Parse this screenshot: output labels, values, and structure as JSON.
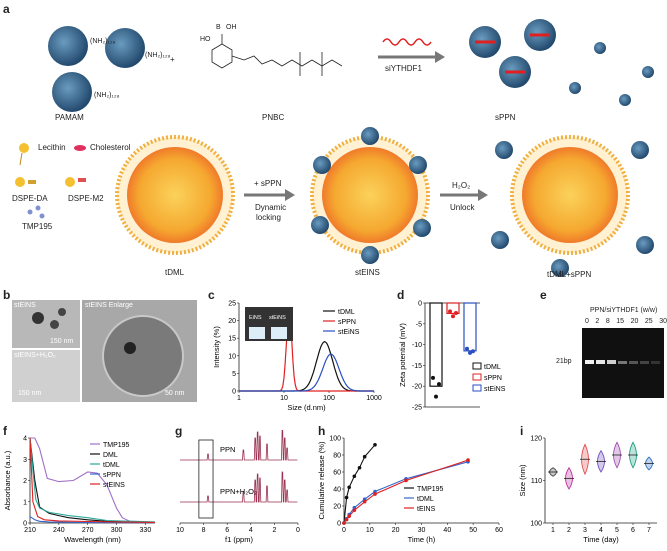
{
  "panels": {
    "a": "a",
    "b": "b",
    "c": "c",
    "d": "d",
    "e": "e",
    "f": "f",
    "g": "g",
    "h": "h",
    "i": "i"
  },
  "schematic": {
    "pamam_label": "PAMAM",
    "pamam_groups": [
      "(NH₂)₁₂₈",
      "(NH₂)₁₂₈",
      "(NH₂)₁₂₈"
    ],
    "pnbc_label": "PNBC",
    "boronic": "B",
    "oh_top": "OH",
    "oh_left": "HO",
    "sirna_label": "siYTHDF1",
    "spp_label": "sPPN",
    "plus": "+",
    "legend": {
      "lecithin": "Lecithin",
      "cholesterol": "Cholesterol",
      "dspe_da": "DSPE-DA",
      "dspe_m2": "DSPE-M2",
      "tmp195": "TMP195"
    },
    "tdml_label": "tDML",
    "arrow1_top": "+ sPPN",
    "arrow1_bottom1": "Dynamic",
    "arrow1_bottom2": "locking",
    "steins_label": "stEINS",
    "arrow2_top": "H₂O₂",
    "arrow2_bottom": "Unlock",
    "tdml_sppn_label": "tDML+sPPN"
  },
  "panel_b": {
    "tl_label": "stEINS",
    "tl_scale": "150 nm",
    "bl_label": "stEINS+H₂O₂",
    "bl_scale": "150 nm",
    "right_label": "stEINS Enlarge",
    "right_scale": "50 nm"
  },
  "panel_e": {
    "title": "PPN/siYTHDF1 (w/w)",
    "lanes": [
      "0",
      "2",
      "8",
      "15",
      "20",
      "25",
      "30"
    ],
    "band_label": "21bp"
  },
  "chart_data": [
    {
      "id": "c",
      "type": "line",
      "xlabel": "Size (d.nm)",
      "ylabel": "Intensity (%)",
      "xscale": "log",
      "xlim": [
        1,
        1000
      ],
      "xticks": [
        "1",
        "10",
        "100",
        "1000"
      ],
      "ylim": [
        0,
        25
      ],
      "yticks": [
        "0",
        "5",
        "10",
        "15",
        "20",
        "25"
      ],
      "inset": [
        "EiNS",
        "stEiNS"
      ],
      "series": [
        {
          "name": "tDML",
          "color": "#111111",
          "peak": 80,
          "height": 14,
          "width": 0.18
        },
        {
          "name": "sPPN",
          "color": "#e02020",
          "peak": 13,
          "height": 23,
          "width": 0.06
        },
        {
          "name": "stEiNS",
          "color": "#2a4fc0",
          "peak": 110,
          "height": 10.5,
          "width": 0.18
        }
      ]
    },
    {
      "id": "d",
      "type": "bar",
      "ylabel": "Zeta potential (mV)",
      "ylim": [
        -25,
        0
      ],
      "yticks": [
        "0",
        "-5",
        "-10",
        "-15",
        "-20",
        "-25"
      ],
      "categories": [
        "tDML",
        "sPPN",
        "stEiNS"
      ],
      "colors": [
        "#111111",
        "#e02020",
        "#2a4fc0"
      ],
      "values": [
        -20,
        -2.5,
        -11.5
      ],
      "points": [
        [
          -18,
          -22.5,
          -19.5
        ],
        [
          -2,
          -3.2,
          -2.4
        ],
        [
          -11,
          -12,
          -11.6
        ]
      ]
    },
    {
      "id": "f",
      "type": "line",
      "xlabel": "Wavelength (nm)",
      "ylabel": "Absorbance (a.u.)",
      "xlim": [
        210,
        340
      ],
      "xticks": [
        "210",
        "240",
        "270",
        "300",
        "330"
      ],
      "ylim": [
        0,
        4
      ],
      "yticks": [
        "0",
        "1",
        "2",
        "3",
        "4"
      ],
      "series": [
        {
          "name": "TMP195",
          "color": "#a070c8",
          "x": [
            210,
            215,
            220,
            228,
            240,
            255,
            270,
            280,
            290,
            300,
            306,
            315,
            340
          ],
          "y": [
            4,
            4,
            3.5,
            2.1,
            1.95,
            2.0,
            2.4,
            2.35,
            1.8,
            0.7,
            0.25,
            0.05,
            0.02
          ]
        },
        {
          "name": "DML",
          "color": "#111111",
          "x": [
            210,
            215,
            220,
            230,
            240,
            250,
            270,
            290,
            340
          ],
          "y": [
            4,
            2.0,
            0.75,
            0.45,
            0.35,
            0.25,
            0.15,
            0.08,
            0.03
          ]
        },
        {
          "name": "tDML",
          "color": "#2aa89a",
          "x": [
            210,
            213,
            216,
            220,
            230,
            250,
            270,
            290,
            340
          ],
          "y": [
            4,
            2.5,
            1.1,
            0.7,
            0.5,
            0.35,
            0.25,
            0.12,
            0.05
          ]
        },
        {
          "name": "sPPN",
          "color": "#3366cc",
          "x": [
            210,
            215,
            220,
            230,
            260,
            300,
            340
          ],
          "y": [
            0.3,
            0.15,
            0.08,
            0.05,
            0.03,
            0.02,
            0.02
          ]
        },
        {
          "name": "stEINS",
          "color": "#e02020",
          "x": [
            210,
            213,
            218,
            225,
            240,
            270,
            300,
            340
          ],
          "y": [
            4,
            1.0,
            0.3,
            0.15,
            0.1,
            0.07,
            0.05,
            0.03
          ]
        }
      ]
    },
    {
      "id": "g",
      "type": "line",
      "xlabel": "f1 (ppm)",
      "xlim": [
        10,
        0
      ],
      "xticks": [
        "10",
        "8",
        "6",
        "4",
        "2",
        "0"
      ],
      "series": [
        {
          "name": "PPN",
          "color": "#9a3050"
        },
        {
          "name": "PPN+H₂O₂",
          "color": "#9a3050"
        }
      ]
    },
    {
      "id": "h",
      "type": "line",
      "xlabel": "Time (h)",
      "ylabel": "Cumulative release (%)",
      "xlim": [
        0,
        60
      ],
      "xticks": [
        "0",
        "10",
        "20",
        "30",
        "40",
        "50",
        "60"
      ],
      "ylim": [
        0,
        100
      ],
      "yticks": [
        "0",
        "20",
        "40",
        "60",
        "80",
        "100"
      ],
      "series": [
        {
          "name": "TMP195",
          "color": "#111111",
          "x": [
            0,
            1,
            2,
            4,
            6,
            8,
            12
          ],
          "y": [
            0,
            30,
            42,
            55,
            65,
            78,
            92
          ]
        },
        {
          "name": "tDML",
          "color": "#3366cc",
          "x": [
            0,
            1,
            2,
            4,
            8,
            12,
            24,
            48
          ],
          "y": [
            0,
            5,
            10,
            18,
            28,
            37,
            52,
            72
          ]
        },
        {
          "name": "tEINS",
          "color": "#e02020",
          "x": [
            0,
            1,
            2,
            4,
            8,
            12,
            24,
            48
          ],
          "y": [
            0,
            4,
            8,
            15,
            25,
            34,
            50,
            74
          ]
        }
      ]
    },
    {
      "id": "i",
      "type": "violin",
      "xlabel": "Time (day)",
      "ylabel": "Size (nm)",
      "categories": [
        "1",
        "2",
        "3",
        "4",
        "5",
        "6",
        "7"
      ],
      "ylim": [
        100,
        120
      ],
      "yticks": [
        "100",
        "110",
        "120"
      ],
      "colors": [
        "#444444",
        "#c030a0",
        "#e05050",
        "#7050c0",
        "#a050b0",
        "#20a080",
        "#3070c0"
      ],
      "medians": [
        112,
        110.5,
        115,
        114.5,
        116,
        116,
        114
      ],
      "spreads": [
        1,
        2.5,
        3.5,
        2.5,
        3,
        3,
        1.5
      ]
    }
  ]
}
